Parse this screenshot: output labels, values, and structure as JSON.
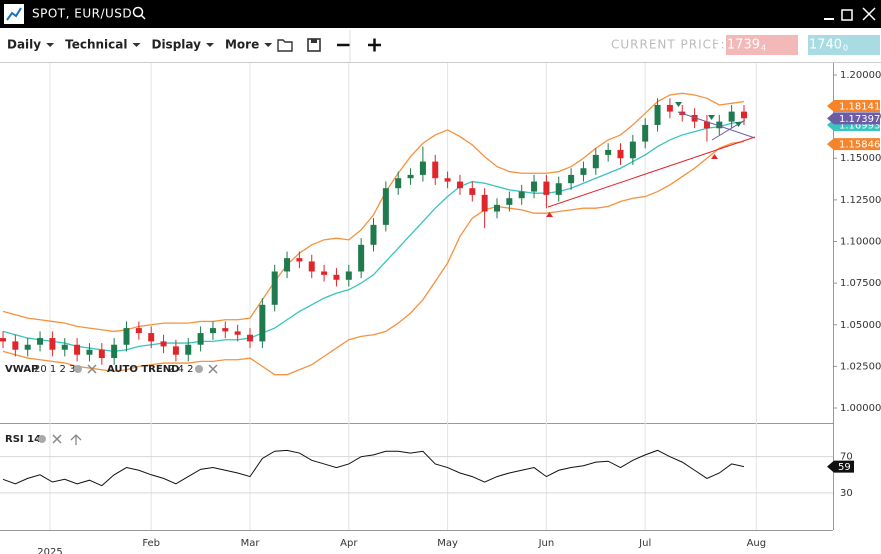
{
  "header": {
    "title": "SPOT, EUR/USD"
  },
  "toolbar": {
    "menus": [
      "Daily",
      "Technical",
      "Display",
      "More"
    ],
    "current_price_label": "CURRENT PRICE:",
    "bid_main": "1.1739",
    "bid_pip": "4",
    "ask_main": "1.1740",
    "ask_pip": "0"
  },
  "chart_data": [
    {
      "type": "candlestick",
      "categories": [
        null,
        null,
        null,
        null,
        null,
        null,
        null,
        null,
        null,
        null,
        null,
        null,
        "Feb",
        null,
        null,
        null,
        null,
        null,
        null,
        null,
        "Mar",
        null,
        null,
        null,
        null,
        null,
        null,
        null,
        "Apr",
        null,
        null,
        null,
        null,
        null,
        null,
        null,
        "May",
        null,
        null,
        null,
        null,
        null,
        null,
        null,
        "Jun",
        null,
        null,
        null,
        null,
        null,
        null,
        null,
        "Jul",
        null,
        null,
        null,
        null,
        null,
        null,
        null,
        null,
        "Aug"
      ],
      "year_label": "2025",
      "open": [
        1.042,
        1.04,
        1.035,
        1.038,
        1.042,
        1.035,
        1.038,
        1.032,
        1.035,
        1.03,
        1.038,
        1.048,
        1.045,
        1.04,
        1.037,
        1.032,
        1.038,
        1.045,
        1.048,
        1.046,
        1.044,
        1.04,
        1.062,
        1.082,
        1.09,
        1.088,
        1.082,
        1.08,
        1.077,
        1.082,
        1.098,
        1.11,
        1.132,
        1.138,
        1.14,
        1.148,
        1.138,
        1.136,
        1.132,
        1.128,
        1.118,
        1.122,
        1.126,
        1.13,
        1.136,
        1.128,
        1.135,
        1.14,
        1.144,
        1.152,
        1.155,
        1.15,
        1.16,
        1.17,
        1.182,
        1.178,
        1.176,
        1.172,
        1.168,
        1.172,
        1.178,
        null
      ],
      "high": [
        1.046,
        1.044,
        1.042,
        1.046,
        1.046,
        1.042,
        1.042,
        1.039,
        1.039,
        1.042,
        1.052,
        1.052,
        1.049,
        1.044,
        1.041,
        1.042,
        1.049,
        1.052,
        1.052,
        1.05,
        1.048,
        1.066,
        1.086,
        1.094,
        1.094,
        1.092,
        1.086,
        1.084,
        1.086,
        1.102,
        1.114,
        1.136,
        1.142,
        1.144,
        1.157,
        1.152,
        1.142,
        1.14,
        1.136,
        1.132,
        1.126,
        1.13,
        1.134,
        1.14,
        1.14,
        1.139,
        1.144,
        1.148,
        1.156,
        1.159,
        1.159,
        1.164,
        1.174,
        1.186,
        1.186,
        1.182,
        1.18,
        1.176,
        1.176,
        1.182,
        1.182,
        null
      ],
      "low": [
        1.036,
        1.031,
        1.031,
        1.034,
        1.031,
        1.031,
        1.028,
        1.028,
        1.026,
        1.026,
        1.034,
        1.041,
        1.036,
        1.033,
        1.028,
        1.028,
        1.034,
        1.041,
        1.042,
        1.04,
        1.036,
        1.036,
        1.058,
        1.078,
        1.084,
        1.078,
        1.076,
        1.073,
        1.073,
        1.078,
        1.094,
        1.106,
        1.128,
        1.134,
        1.136,
        1.134,
        1.132,
        1.128,
        1.124,
        1.108,
        1.114,
        1.118,
        1.122,
        1.126,
        1.12,
        1.124,
        1.131,
        1.136,
        1.14,
        1.148,
        1.146,
        1.146,
        1.156,
        1.166,
        1.174,
        1.172,
        1.168,
        1.16,
        1.164,
        1.168,
        1.17,
        null
      ],
      "close": [
        1.04,
        1.035,
        1.038,
        1.042,
        1.035,
        1.038,
        1.032,
        1.035,
        1.03,
        1.038,
        1.048,
        1.045,
        1.04,
        1.037,
        1.032,
        1.038,
        1.045,
        1.048,
        1.046,
        1.044,
        1.04,
        1.062,
        1.082,
        1.09,
        1.088,
        1.082,
        1.08,
        1.077,
        1.082,
        1.098,
        1.11,
        1.132,
        1.138,
        1.14,
        1.148,
        1.138,
        1.136,
        1.132,
        1.128,
        1.118,
        1.122,
        1.126,
        1.13,
        1.136,
        1.128,
        1.135,
        1.14,
        1.144,
        1.152,
        1.155,
        1.15,
        1.16,
        1.17,
        1.182,
        1.178,
        1.176,
        1.172,
        1.168,
        1.172,
        1.178,
        1.174,
        null
      ],
      "up_color": "#1f7a4d",
      "down_color": "#e0262b",
      "overlays": [
        {
          "color": "#f5923e",
          "values": [
            1.058,
            1.056,
            1.054,
            1.053,
            1.052,
            1.051,
            1.049,
            1.048,
            1.047,
            1.046,
            1.047,
            1.049,
            1.05,
            1.051,
            1.051,
            1.051,
            1.052,
            1.052,
            1.053,
            1.053,
            1.054,
            1.065,
            1.076,
            1.086,
            1.093,
            1.098,
            1.101,
            1.102,
            1.101,
            1.107,
            1.116,
            1.13,
            1.141,
            1.151,
            1.159,
            1.164,
            1.167,
            1.163,
            1.158,
            1.151,
            1.145,
            1.142,
            1.141,
            1.141,
            1.141,
            1.142,
            1.145,
            1.15,
            1.156,
            1.161,
            1.164,
            1.17,
            1.177,
            1.184,
            1.188,
            1.189,
            1.188,
            1.186,
            1.182,
            1.183,
            1.184,
            null
          ]
        },
        {
          "color": "#38c4bf",
          "values": [
            1.046,
            1.044,
            1.042,
            1.041,
            1.04,
            1.039,
            1.037,
            1.036,
            1.035,
            1.034,
            1.035,
            1.037,
            1.038,
            1.039,
            1.039,
            1.039,
            1.04,
            1.04,
            1.041,
            1.041,
            1.042,
            1.045,
            1.048,
            1.053,
            1.058,
            1.062,
            1.066,
            1.069,
            1.071,
            1.075,
            1.08,
            1.088,
            1.096,
            1.104,
            1.112,
            1.12,
            1.127,
            1.133,
            1.136,
            1.135,
            1.133,
            1.131,
            1.13,
            1.129,
            1.129,
            1.13,
            1.132,
            1.135,
            1.138,
            1.141,
            1.144,
            1.148,
            1.152,
            1.157,
            1.161,
            1.164,
            1.166,
            1.168,
            1.169,
            1.171,
            1.172,
            null
          ]
        },
        {
          "color": "#f5923e",
          "values": [
            1.034,
            1.032,
            1.03,
            1.029,
            1.028,
            1.027,
            1.025,
            1.024,
            1.023,
            1.022,
            1.023,
            1.025,
            1.026,
            1.027,
            1.027,
            1.027,
            1.028,
            1.028,
            1.029,
            1.029,
            1.03,
            1.025,
            1.02,
            1.02,
            1.023,
            1.026,
            1.031,
            1.036,
            1.041,
            1.043,
            1.044,
            1.046,
            1.051,
            1.057,
            1.065,
            1.076,
            1.087,
            1.103,
            1.114,
            1.119,
            1.121,
            1.12,
            1.119,
            1.117,
            1.117,
            1.118,
            1.119,
            1.12,
            1.12,
            1.121,
            1.124,
            1.126,
            1.127,
            1.13,
            1.134,
            1.139,
            1.144,
            1.15,
            1.156,
            1.159,
            1.16,
            null
          ]
        }
      ],
      "indicators": [
        {
          "label": "VWAP",
          "params": "20 1 2 3"
        },
        {
          "label": "AUTO TREND",
          "params": "2 4 2"
        }
      ],
      "markers": [
        {
          "value": 1.18141,
          "label": "1.18141",
          "color": "#f5842a"
        },
        {
          "value": 1.16993,
          "label": "1.16993",
          "color": "#38c4bf"
        },
        {
          "value": 1.17397,
          "label": "1.173970",
          "color": "#6b5ca5"
        },
        {
          "value": 1.15846,
          "label": "1.15846",
          "color": "#f5842a"
        }
      ],
      "ylim": [
        0.9928,
        1.2072
      ],
      "yticks": [
        {
          "value": 1.0,
          "label": "1.00000"
        },
        {
          "value": 1.025,
          "label": "1.02500"
        },
        {
          "value": 1.05,
          "label": "1.05000"
        },
        {
          "value": 1.075,
          "label": "1.07500"
        },
        {
          "value": 1.1,
          "label": "1.10000"
        },
        {
          "value": 1.125,
          "label": "1.12500"
        },
        {
          "value": 1.15,
          "label": "1.15000"
        },
        {
          "value": 1.175,
          "label": "1.17500"
        },
        {
          "value": 1.2,
          "label": "1.20000"
        }
      ]
    },
    {
      "type": "line",
      "title": "RSI 14",
      "color": "#111111",
      "values": [
        45,
        40,
        46,
        50,
        42,
        45,
        40,
        44,
        38,
        50,
        58,
        55,
        50,
        46,
        40,
        48,
        56,
        58,
        55,
        52,
        48,
        68,
        76,
        77,
        74,
        66,
        62,
        58,
        62,
        70,
        72,
        76,
        76,
        74,
        76,
        62,
        58,
        52,
        48,
        42,
        48,
        52,
        55,
        58,
        48,
        55,
        58,
        60,
        64,
        65,
        58,
        66,
        72,
        77,
        70,
        64,
        55,
        46,
        52,
        62,
        59,
        null
      ],
      "last_value_label": "59",
      "ylim": [
        -11,
        105
      ],
      "yticks": [
        30,
        70
      ]
    }
  ]
}
